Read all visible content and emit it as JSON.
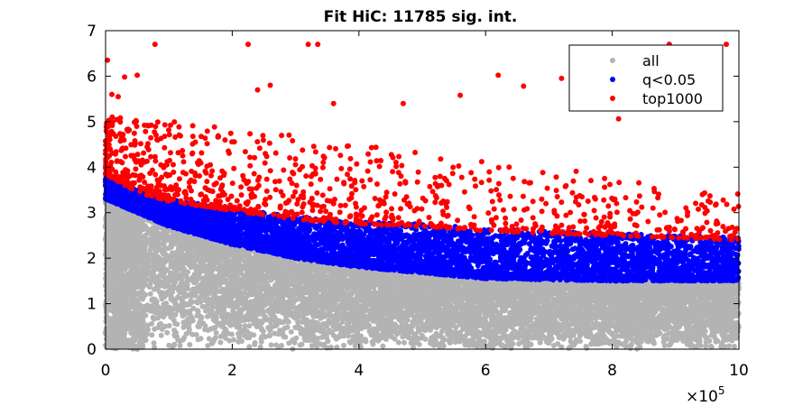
{
  "chart_data": {
    "type": "scatter",
    "title": "Fit HiC: 11785 sig. int.",
    "xlabel": "",
    "ylabel": "",
    "x_multiplier_label": "×10",
    "x_multiplier_exponent": "5",
    "xlim": [
      0,
      1000000
    ],
    "ylim": [
      0,
      7
    ],
    "xticks": [
      0,
      200000,
      400000,
      600000,
      800000,
      1000000
    ],
    "xtick_labels": [
      "0",
      "2",
      "4",
      "6",
      "8",
      "10"
    ],
    "yticks": [
      0,
      1,
      2,
      3,
      4,
      5,
      6,
      7
    ],
    "ytick_labels": [
      "0",
      "1",
      "2",
      "3",
      "4",
      "5",
      "6",
      "7"
    ],
    "grid": false,
    "legend_position": "top-right",
    "series": [
      {
        "name": "all",
        "color": "#b3b3b3",
        "description_points": [
          [
            0,
            3.3
          ],
          [
            100000,
            2.7
          ],
          [
            200000,
            2.3
          ],
          [
            300000,
            2.0
          ],
          [
            400000,
            1.8
          ],
          [
            560000,
            1.6
          ],
          [
            600000,
            1.55
          ],
          [
            800000,
            1.5
          ],
          [
            1000000,
            1.5
          ]
        ]
      },
      {
        "name": "q<0.05",
        "color": "#0000ff",
        "upper_boundary": [
          [
            0,
            3.9
          ],
          [
            50000,
            3.5
          ],
          [
            100000,
            3.3
          ],
          [
            200000,
            3.1
          ],
          [
            300000,
            2.9
          ],
          [
            400000,
            2.8
          ],
          [
            500000,
            2.75
          ],
          [
            600000,
            2.65
          ],
          [
            700000,
            2.6
          ],
          [
            800000,
            2.55
          ],
          [
            900000,
            2.5
          ],
          [
            1000000,
            2.45
          ]
        ],
        "lower_boundary": [
          [
            0,
            3.3
          ],
          [
            100000,
            2.7
          ],
          [
            200000,
            2.3
          ],
          [
            300000,
            2.0
          ],
          [
            400000,
            1.8
          ],
          [
            560000,
            1.6
          ],
          [
            600000,
            1.55
          ],
          [
            800000,
            1.5
          ],
          [
            1000000,
            1.5
          ]
        ]
      },
      {
        "name": "top1000",
        "color": "#ff0000",
        "highlight_points": [
          [
            3000,
            6.35
          ],
          [
            10000,
            5.6
          ],
          [
            20000,
            5.55
          ],
          [
            30000,
            5.98
          ],
          [
            50000,
            6.02
          ],
          [
            78000,
            6.7
          ],
          [
            225000,
            6.7
          ],
          [
            320000,
            6.7
          ],
          [
            335000,
            6.7
          ],
          [
            890000,
            6.7
          ],
          [
            980000,
            6.7
          ],
          [
            260000,
            5.8
          ],
          [
            470000,
            5.4
          ],
          [
            620000,
            6.02
          ],
          [
            720000,
            5.95
          ],
          [
            660000,
            5.78
          ],
          [
            810000,
            5.06
          ],
          [
            360000,
            5.4
          ],
          [
            560000,
            5.58
          ],
          [
            240000,
            5.7
          ]
        ]
      }
    ]
  }
}
